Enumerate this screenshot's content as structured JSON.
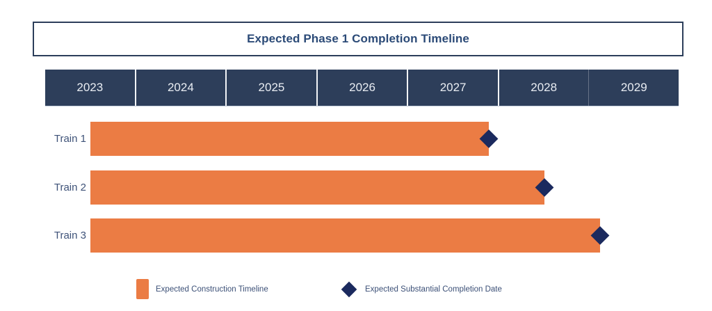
{
  "title": {
    "text": "Expected Phase 1 Completion Timeline"
  },
  "chart_data": {
    "type": "gantt",
    "title": "Expected Phase 1 Completion Timeline",
    "x_axis": {
      "unit": "year",
      "ticks": [
        "2023",
        "2024",
        "2025",
        "2026",
        "2027",
        "2028",
        "2029"
      ],
      "range": [
        2023,
        2030
      ]
    },
    "categories": [
      "Train 1",
      "Train 2",
      "Train 3"
    ],
    "bars": [
      {
        "label": "Train 1",
        "start": 2023.5,
        "end": 2027.9,
        "milestone": 2027.9
      },
      {
        "label": "Train 2",
        "start": 2023.5,
        "end": 2028.52,
        "milestone": 2028.52
      },
      {
        "label": "Train 3",
        "start": 2023.5,
        "end": 2029.13,
        "milestone": 2029.13
      }
    ],
    "legend": [
      {
        "swatch": "orange-square",
        "label": "Expected Construction Timeline"
      },
      {
        "swatch": "navy-diamond",
        "label": "Expected Substantial Completion Date"
      }
    ],
    "legend_position": "bottom",
    "grid": "off"
  },
  "colors": {
    "background": "#ffffff",
    "bar_orange": "#EB7C44",
    "axis_band_navy": "#2D3E5A",
    "milestone_navy": "#1B2A5E",
    "title_text": "#2B4A77",
    "title_border": "#2C3E5A",
    "category_label_text": "#3E5278",
    "legend_text": "#3C5077",
    "axis_tick_text": "#E9EDF3"
  }
}
